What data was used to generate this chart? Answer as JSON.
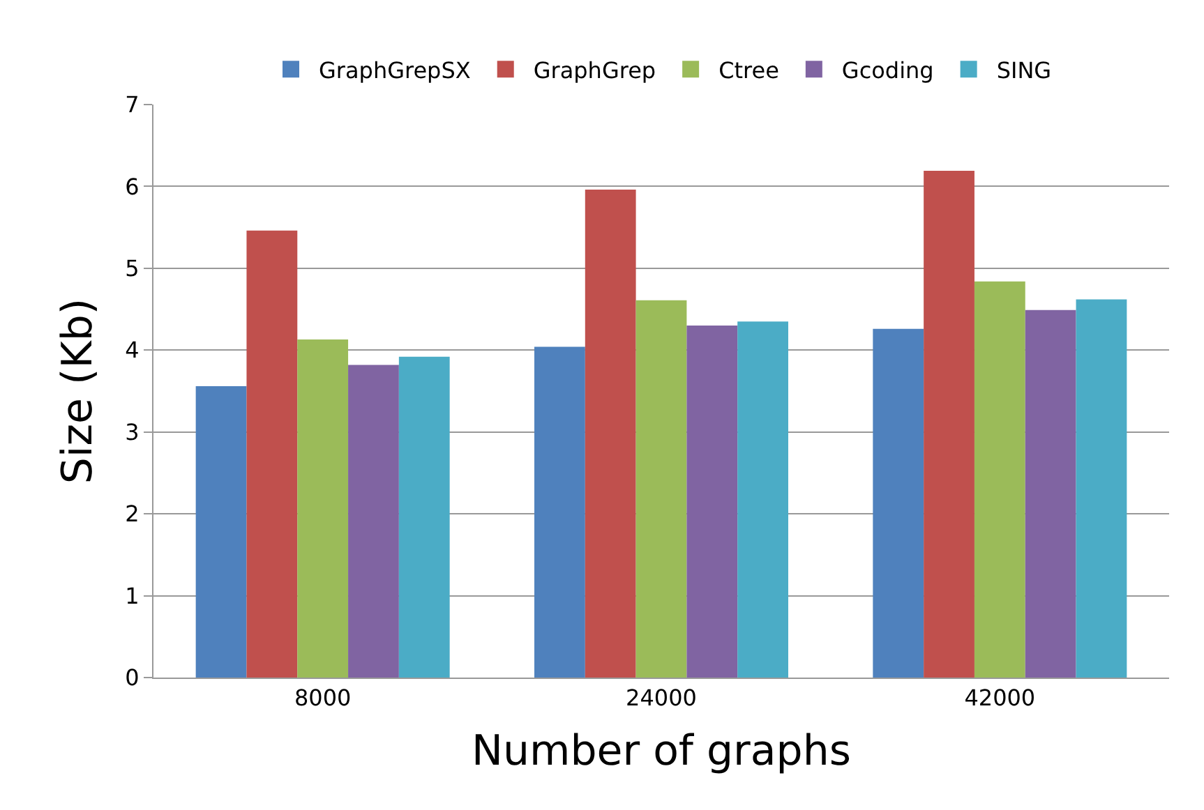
{
  "chart_data": {
    "type": "bar",
    "xlabel": "Number of graphs",
    "ylabel": "Size (Kb)",
    "categories": [
      "8000",
      "24000",
      "42000"
    ],
    "series": [
      {
        "name": "GraphGrepSX",
        "color": "#4f81bd",
        "values": [
          3.56,
          4.04,
          4.26
        ]
      },
      {
        "name": "GraphGrep",
        "color": "#c0504d",
        "values": [
          5.46,
          5.96,
          6.19
        ]
      },
      {
        "name": "Ctree",
        "color": "#9bbb59",
        "values": [
          4.13,
          4.61,
          4.84
        ]
      },
      {
        "name": "Gcoding",
        "color": "#8064a2",
        "values": [
          3.82,
          4.3,
          4.49
        ]
      },
      {
        "name": "SING",
        "color": "#4bacc6",
        "values": [
          3.92,
          4.35,
          4.62
        ]
      }
    ],
    "ylim": [
      0,
      7
    ],
    "yticks": [
      0,
      1,
      2,
      3,
      4,
      5,
      6,
      7
    ],
    "grid": "y",
    "legend": "top"
  }
}
